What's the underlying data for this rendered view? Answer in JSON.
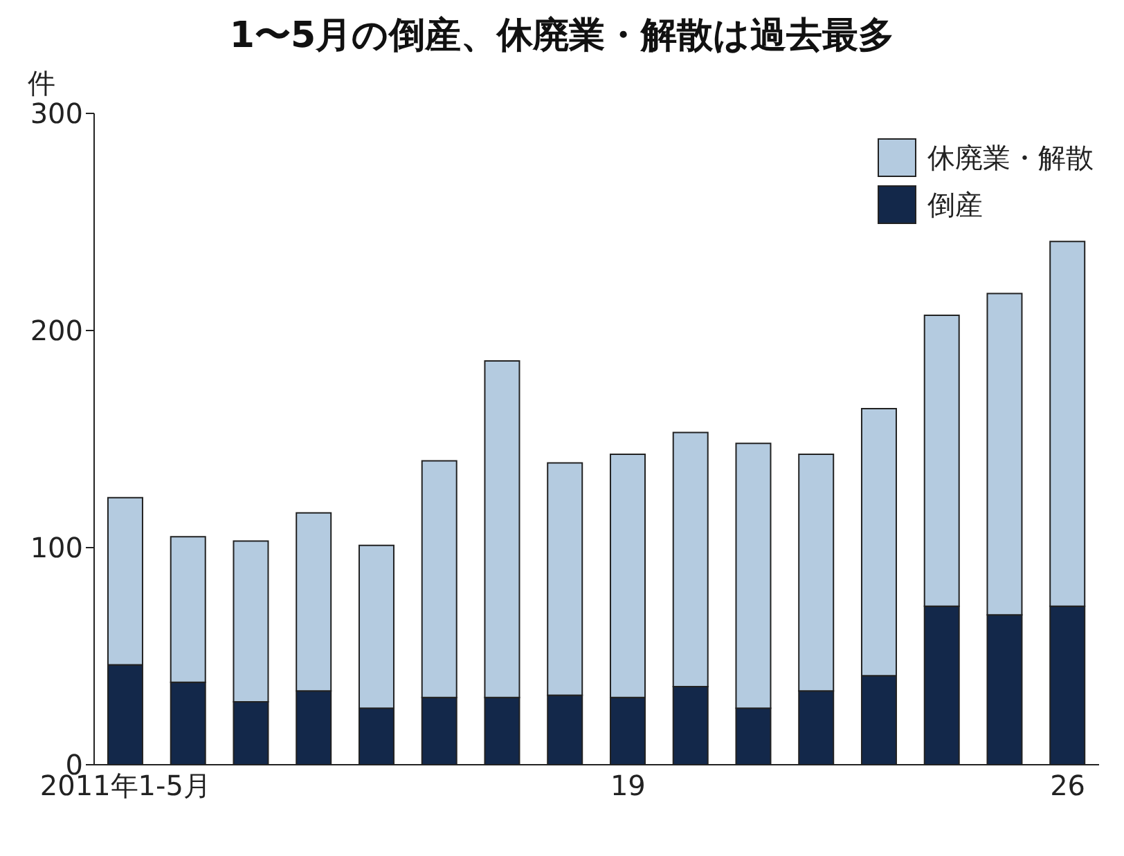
{
  "chart_data": {
    "type": "bar",
    "title": "1〜5月の倒産、休廃業・解散は過去最多",
    "ylabel": "件",
    "categories": [
      "2011年1-5月",
      null,
      null,
      null,
      null,
      null,
      null,
      null,
      "19",
      null,
      null,
      null,
      null,
      null,
      null,
      "26"
    ],
    "series": [
      {
        "name": "倒産",
        "color": "#13284a",
        "values": [
          46,
          38,
          29,
          34,
          26,
          31,
          31,
          32,
          31,
          36,
          26,
          34,
          41,
          73,
          69,
          73
        ]
      },
      {
        "name": "休廃業・解散",
        "color": "#b4cbe0",
        "values": [
          77,
          67,
          74,
          82,
          75,
          109,
          155,
          107,
          112,
          117,
          122,
          109,
          123,
          134,
          148,
          168
        ]
      }
    ],
    "stacked": true,
    "ylim": [
      0,
      300
    ],
    "yticks": [
      0,
      100,
      200,
      300
    ],
    "grid": false,
    "legend": "top right"
  }
}
